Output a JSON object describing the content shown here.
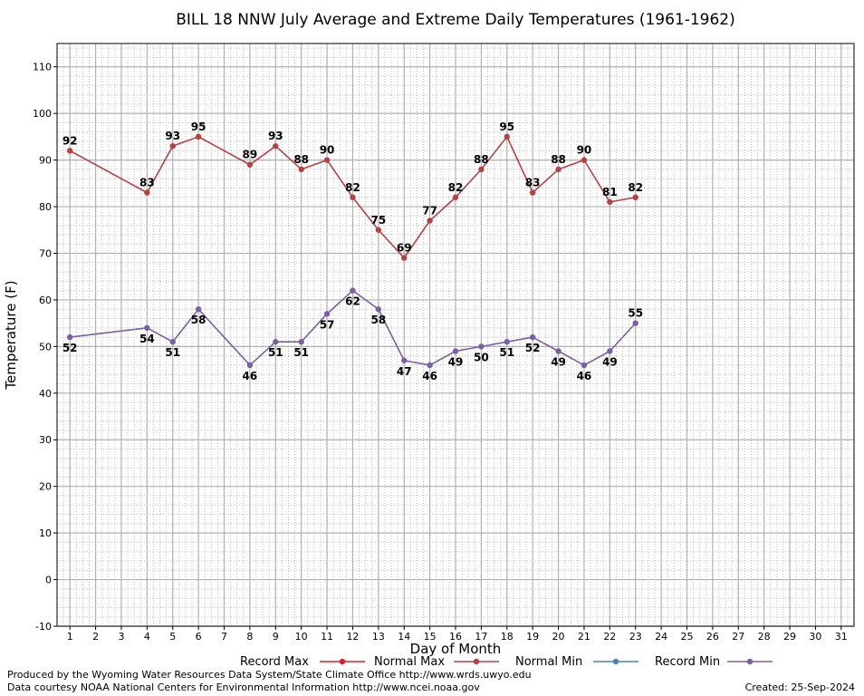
{
  "chart_data": {
    "type": "line",
    "title": "BILL 18 NNW July Average and Extreme Daily Temperatures (1961-1962)",
    "xlabel": "Day of Month",
    "ylabel": "Temperature (F)",
    "xlim": [
      0.5,
      31.5
    ],
    "ylim": [
      -10,
      115
    ],
    "x_ticks": [
      1,
      2,
      3,
      4,
      5,
      6,
      7,
      8,
      9,
      10,
      11,
      12,
      13,
      14,
      15,
      16,
      17,
      18,
      19,
      20,
      21,
      22,
      23,
      24,
      25,
      26,
      27,
      28,
      29,
      30,
      31
    ],
    "y_ticks": [
      -10,
      0,
      10,
      20,
      30,
      40,
      50,
      60,
      70,
      80,
      90,
      100,
      110
    ],
    "grid": true,
    "legend_position": "bottom",
    "series": [
      {
        "name": "Record Max",
        "color": "#b94040",
        "x": [
          1,
          4,
          5,
          6,
          8,
          9,
          10,
          11,
          12,
          13,
          14,
          15,
          16,
          17,
          18,
          19,
          20,
          21,
          22,
          23
        ],
        "values": [
          92,
          83,
          93,
          95,
          89,
          93,
          88,
          90,
          82,
          75,
          69,
          77,
          82,
          88,
          95,
          83,
          88,
          90,
          81,
          82
        ],
        "label_position": "above"
      },
      {
        "name": "Record Min",
        "color": "#7b5ea7",
        "x": [
          1,
          4,
          5,
          6,
          8,
          9,
          10,
          11,
          12,
          13,
          14,
          15,
          16,
          17,
          18,
          19,
          20,
          21,
          22,
          23
        ],
        "values": [
          52,
          54,
          51,
          58,
          46,
          51,
          51,
          57,
          62,
          58,
          47,
          46,
          49,
          50,
          51,
          52,
          49,
          46,
          49,
          55
        ],
        "label_position": "mixed"
      }
    ],
    "legend": [
      {
        "name": "Record Max",
        "color": "#e02020"
      },
      {
        "name": "Normal Max",
        "color": "#b94040"
      },
      {
        "name": "Normal Min",
        "color": "#4682b4"
      },
      {
        "name": "Record Min",
        "color": "#7b5ea7"
      }
    ]
  },
  "footer": {
    "produced_by": "Produced by the Wyoming Water Resources Data System/State Climate Office http://www.wrds.uwyo.edu",
    "courtesy": "Data courtesy NOAA National Centers for Environmental Information http://www.ncei.noaa.gov",
    "created": "Created: 25-Sep-2024"
  }
}
